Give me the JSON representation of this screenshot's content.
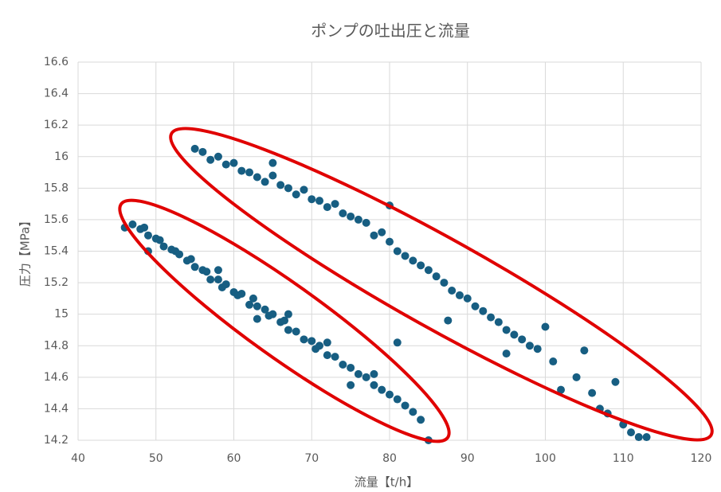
{
  "chart_data": {
    "type": "scatter",
    "title": "ポンプの吐出圧と流量",
    "x_label": "流量【t/h】",
    "y_label": "圧力【MPa】",
    "xlim": [
      40,
      120
    ],
    "xticks": [
      40,
      50,
      60,
      70,
      80,
      90,
      100,
      110,
      120
    ],
    "ylim": [
      14.2,
      16.6
    ],
    "yticks": [
      14.2,
      14.4,
      14.6,
      14.8,
      15,
      15.2,
      15.4,
      15.6,
      15.8,
      16,
      16.2,
      16.4,
      16.6
    ],
    "grid": true,
    "series": [
      {
        "color": "#175e82",
        "x": [
          46,
          47,
          48,
          48.5,
          49,
          50,
          50.5,
          51,
          52,
          52.5,
          53,
          54,
          54.5,
          55,
          56,
          56.5,
          57,
          58,
          58.5,
          59,
          60,
          60.5,
          61,
          62,
          62.5,
          63,
          64,
          64.5,
          65,
          66,
          66.5,
          67,
          68,
          69,
          70,
          70.5,
          71,
          72,
          73,
          74,
          75,
          76,
          77,
          78,
          79,
          80,
          81,
          82,
          83,
          84,
          85,
          49,
          58,
          63,
          67,
          72,
          75,
          78,
          81,
          55,
          56,
          57,
          58,
          59,
          60,
          61,
          62,
          63,
          64,
          65,
          66,
          67,
          68,
          69,
          70,
          71,
          72,
          73,
          74,
          75,
          76,
          77,
          78,
          79,
          80,
          81,
          82,
          83,
          84,
          85,
          86,
          87,
          88,
          89,
          90,
          91,
          92,
          93,
          94,
          95,
          96,
          97,
          98,
          99,
          100,
          101,
          102,
          104,
          105,
          106,
          107,
          108,
          109,
          110,
          111,
          112,
          113,
          65,
          80,
          87.5,
          95
        ],
        "values": [
          15.55,
          15.57,
          15.54,
          15.55,
          15.5,
          15.48,
          15.47,
          15.43,
          15.41,
          15.4,
          15.38,
          15.34,
          15.35,
          15.3,
          15.28,
          15.27,
          15.22,
          15.22,
          15.17,
          15.19,
          15.14,
          15.12,
          15.13,
          15.06,
          15.1,
          15.05,
          15.03,
          14.99,
          15,
          14.95,
          14.96,
          14.9,
          14.89,
          14.84,
          14.83,
          14.78,
          14.8,
          14.74,
          14.73,
          14.68,
          14.66,
          14.62,
          14.6,
          14.55,
          14.52,
          14.49,
          14.46,
          14.42,
          14.38,
          14.33,
          14.2,
          15.4,
          15.28,
          14.97,
          15,
          14.82,
          14.55,
          14.62,
          14.82,
          16.05,
          16.03,
          15.98,
          16,
          15.95,
          15.96,
          15.91,
          15.9,
          15.87,
          15.84,
          15.88,
          15.82,
          15.8,
          15.76,
          15.79,
          15.73,
          15.72,
          15.68,
          15.7,
          15.64,
          15.62,
          15.6,
          15.58,
          15.5,
          15.52,
          15.46,
          15.4,
          15.37,
          15.34,
          15.31,
          15.28,
          15.24,
          15.2,
          15.15,
          15.12,
          15.1,
          15.05,
          15.02,
          14.98,
          14.95,
          14.9,
          14.87,
          14.84,
          14.8,
          14.78,
          14.92,
          14.7,
          14.52,
          14.6,
          14.77,
          14.5,
          14.4,
          14.37,
          14.57,
          14.3,
          14.25,
          14.22,
          14.22,
          15.96,
          15.69,
          14.96,
          14.75
        ]
      }
    ]
  }
}
